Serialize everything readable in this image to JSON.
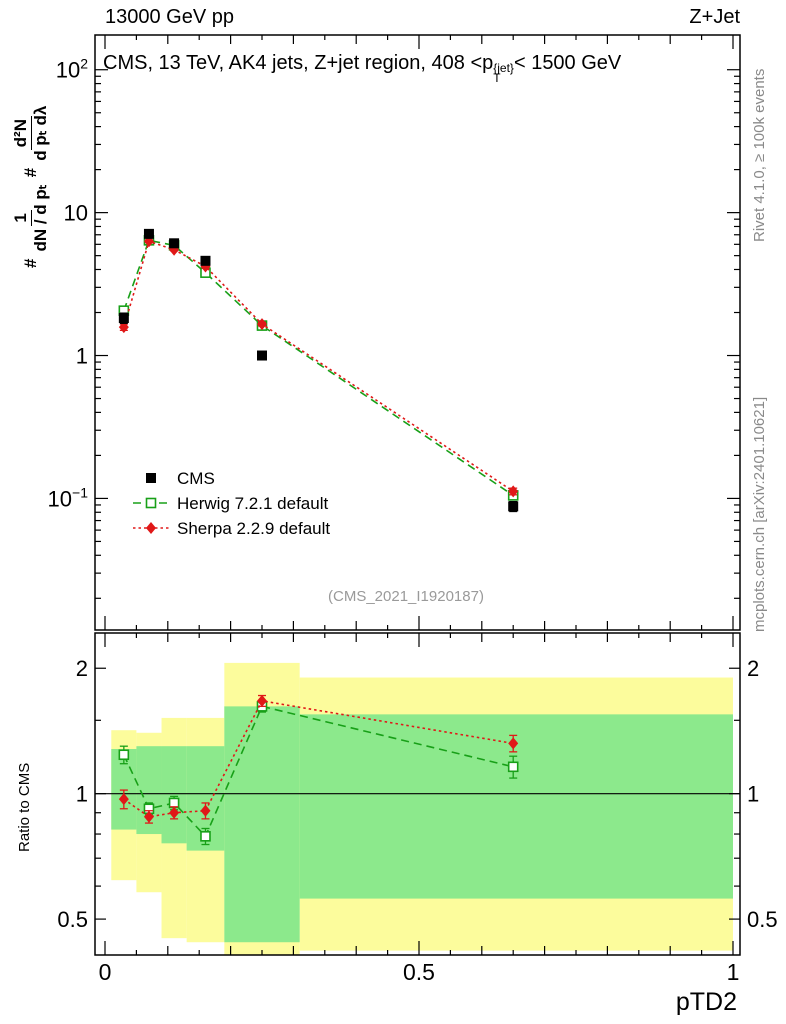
{
  "header": {
    "left": "13000 GeV pp",
    "right": "Z+Jet"
  },
  "panel_title": {
    "prefix": "CMS, 13 TeV, AK4 jets, Z+jet region, 408 <p",
    "sup": "{jet}",
    "sub": "T",
    "suffix": "< 1500 GeV"
  },
  "main_ylabel": {
    "hash1": "#",
    "frac1_num": "1",
    "frac1_den": "dN / d pₜ",
    "hash2": "#",
    "frac2_num": "d²N",
    "frac2_den": "d pₜ dλ"
  },
  "ratio_ylabel": "Ratio to CMS",
  "side_notes": {
    "rivet": "Rivet 4.1.0, ≥ 100k events",
    "mcplots": "mcplots.cern.ch [arXiv:2401.10621]"
  },
  "watermark": "(CMS_2021_I1920187)",
  "chart_data": {
    "type": "line",
    "title": "CMS, 13 TeV, AK4 jets, Z+jet region, 408 <pT{jet} < 1500 GeV",
    "xlabel": "pTD2",
    "ylabel": "# 1/(dN/dpT) # d2N/(dpT dlambda)",
    "ratio_label": "Ratio to CMS",
    "xlim": [
      0,
      1
    ],
    "main_ylog": [
      0.012,
      175
    ],
    "ratio_ylog": [
      0.41,
      2.43
    ],
    "x_ticks_labeled": [
      0,
      0.5,
      1
    ],
    "main_y_ticks_labeled": [
      0.1,
      1,
      10,
      100
    ],
    "ratio_y_ticks_labeled": [
      0.5,
      1,
      2
    ],
    "x": [
      0.03,
      0.07,
      0.11,
      0.16,
      0.25,
      0.65
    ],
    "series": [
      {
        "name": "CMS",
        "color": "#000000",
        "marker": "square",
        "fill": true,
        "line": "none",
        "values": [
          1.83,
          7.1,
          6.1,
          4.6,
          1.0,
          0.088
        ],
        "errors": [
          0.15,
          0.3,
          0.25,
          0.2,
          0.05,
          0.007
        ]
      },
      {
        "name": "Herwig 7.2.1 default",
        "color": "#18a018",
        "marker": "square",
        "fill": false,
        "line": "dashed",
        "values": [
          2.06,
          6.4,
          5.9,
          3.8,
          1.62,
          0.105
        ],
        "errors": [
          0.1,
          0.15,
          0.12,
          0.1,
          0.06,
          0.007
        ],
        "ratio": [
          1.24,
          0.92,
          0.95,
          0.79,
          1.62,
          1.16
        ],
        "ratio_errors": [
          0.06,
          0.03,
          0.035,
          0.035,
          0.05,
          0.07
        ]
      },
      {
        "name": "Sherpa 2.2.9 default",
        "color": "#e01818",
        "marker": "diamond",
        "fill": true,
        "line": "dotted",
        "values": [
          1.58,
          6.3,
          5.5,
          4.2,
          1.66,
          0.112
        ],
        "errors": [
          0.08,
          0.12,
          0.1,
          0.1,
          0.05,
          0.006
        ],
        "ratio": [
          0.97,
          0.88,
          0.9,
          0.91,
          1.67,
          1.32
        ],
        "ratio_errors": [
          0.05,
          0.03,
          0.03,
          0.04,
          0.05,
          0.06
        ]
      }
    ],
    "bands": {
      "bin_edges": [
        0.01,
        0.05,
        0.09,
        0.13,
        0.19,
        0.31,
        1.0
      ],
      "yellow": {
        "color": "#fcfc9c",
        "lo": [
          0.62,
          0.58,
          0.45,
          0.44,
          0.4,
          0.42
        ],
        "hi": [
          1.42,
          1.4,
          1.52,
          1.52,
          2.06,
          1.9
        ]
      },
      "green": {
        "color": "#8ce98c",
        "lo": [
          0.82,
          0.8,
          0.76,
          0.73,
          0.44,
          0.56
        ],
        "hi": [
          1.28,
          1.3,
          1.3,
          1.3,
          1.62,
          1.55
        ]
      }
    },
    "ratio_ref_line": 1
  }
}
